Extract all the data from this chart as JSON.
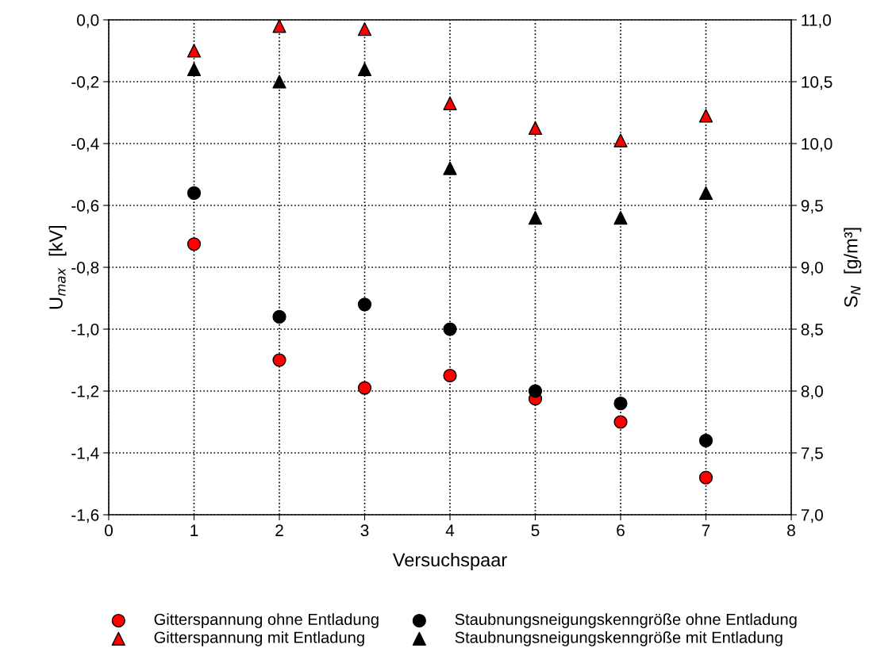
{
  "chart_data": {
    "type": "scatter",
    "xlabel": "Versuchspaar",
    "ylabel": "U$_{max}$  [kV]",
    "y2label": "S$_{N}$  [g/m³]",
    "x": [
      1,
      2,
      3,
      4,
      5,
      6,
      7
    ],
    "series": [
      {
        "name": "Gitterspannung ohne Entladung",
        "color": "#ff0000",
        "marker": "circle",
        "values": [
          -0.725,
          -1.1,
          -1.19,
          -1.15,
          -1.225,
          -1.3,
          -1.48
        ]
      },
      {
        "name": "Gitterspannung mit Entladung",
        "color": "#ff0000",
        "marker": "triangle",
        "values": [
          -0.1,
          -0.02,
          -0.03,
          -0.27,
          -0.35,
          -0.39,
          -0.31
        ]
      },
      {
        "name": "Staubnungsneigungskenngröße ohne Entladung",
        "color": "#000000",
        "marker": "circle",
        "axis": "y2",
        "values": [
          9.6,
          8.6,
          8.7,
          8.5,
          8.0,
          7.9,
          7.6
        ]
      },
      {
        "name": "Staubnungsneigungskenngröße mit Entladung",
        "color": "#000000",
        "marker": "triangle",
        "axis": "y2",
        "values": [
          10.6,
          10.5,
          10.6,
          9.8,
          9.4,
          9.4,
          9.6
        ]
      }
    ],
    "xlim": [
      0,
      8
    ],
    "xticks": [
      0,
      1,
      2,
      3,
      4,
      5,
      6,
      7,
      8
    ],
    "ylim": [
      -1.6,
      0
    ],
    "yticks": [
      {
        "value": -1.6,
        "label": "-1,6"
      },
      {
        "value": -1.4,
        "label": "-1,4"
      },
      {
        "value": -1.2,
        "label": "-1,2"
      },
      {
        "value": -1.0,
        "label": "-1,0"
      },
      {
        "value": -0.8,
        "label": "-0,8"
      },
      {
        "value": -0.6,
        "label": "-0,6"
      },
      {
        "value": -0.4,
        "label": "-0,4"
      },
      {
        "value": -0.2,
        "label": "-0,2"
      },
      {
        "value": 0,
        "label": "0,0"
      }
    ],
    "y2lim": [
      7,
      11
    ],
    "y2ticks": [
      {
        "value": 7,
        "label": "7,0"
      },
      {
        "value": 7.5,
        "label": "7,5"
      },
      {
        "value": 8,
        "label": "8,0"
      },
      {
        "value": 8.5,
        "label": "8,5"
      },
      {
        "value": 9,
        "label": "9,0"
      },
      {
        "value": 9.5,
        "label": "9,5"
      },
      {
        "value": 10,
        "label": "10,0"
      },
      {
        "value": 10.5,
        "label": "10,5"
      },
      {
        "value": 11,
        "label": "11,0"
      }
    ],
    "grid": true,
    "legend": "bottom"
  }
}
